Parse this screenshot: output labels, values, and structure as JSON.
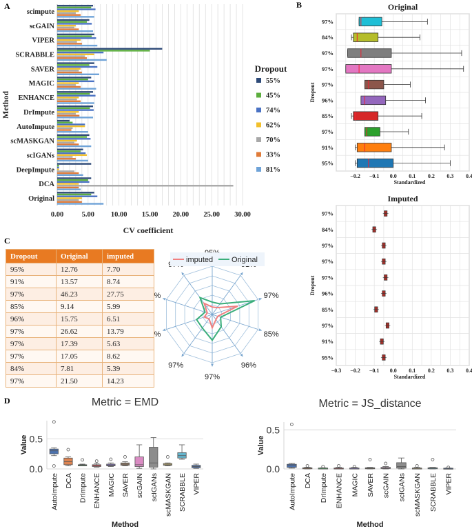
{
  "panel_labels": {
    "a": "A",
    "b": "B",
    "c": "C",
    "d": "D"
  },
  "chart_data": [
    {
      "id": "A",
      "type": "bar",
      "orientation": "horizontal",
      "xlabel": "CV coefficient",
      "ylabel": "Method",
      "xlim": [
        0,
        30
      ],
      "xticks": [
        "0.00",
        "5.00",
        "10.00",
        "15.00",
        "20.00",
        "25.00",
        "30.00"
      ],
      "legend_title": "Dropout",
      "categories": [
        "scimpute",
        "scGAIN",
        "VIPER",
        "SCRABBLE",
        "SAVER",
        "MAGIC",
        "ENHANCE",
        "DrImpute",
        "AutoImpute",
        "scMASKGAN",
        "scIGANs",
        "DeepImpute",
        "DCA",
        "Original"
      ],
      "series": [
        {
          "name": "55%",
          "color": "#2e4a78",
          "values": [
            5.8,
            5.2,
            6.0,
            17.0,
            6.0,
            5.5,
            5.8,
            5.8,
            2.0,
            5.2,
            4.2,
            5.5,
            5.5,
            6.0
          ]
        },
        {
          "name": "45%",
          "color": "#5cae3e",
          "values": [
            5.5,
            4.8,
            5.6,
            15.0,
            5.2,
            5.0,
            5.3,
            5.3,
            2.5,
            4.8,
            3.8,
            0.3,
            5.0,
            5.5
          ]
        },
        {
          "name": "74%",
          "color": "#4a72c4",
          "values": [
            6.2,
            5.6,
            6.3,
            7.5,
            6.5,
            6.0,
            6.2,
            5.9,
            4.5,
            5.4,
            4.6,
            0.3,
            5.2,
            6.5
          ]
        },
        {
          "name": "62%",
          "color": "#f2c02c",
          "values": [
            3.5,
            3.0,
            3.8,
            6.0,
            3.8,
            3.5,
            3.5,
            3.5,
            4.5,
            3.2,
            4.8,
            0.3,
            3.5,
            4.0
          ]
        },
        {
          "name": "70%",
          "color": "#a8a8a8",
          "values": [
            3.0,
            2.8,
            3.2,
            4.5,
            3.5,
            3.0,
            3.2,
            3.0,
            2.5,
            2.8,
            2.5,
            2.8,
            28.5,
            3.5
          ]
        },
        {
          "name": "33%",
          "color": "#e07b39",
          "values": [
            3.8,
            3.5,
            4.0,
            4.8,
            4.0,
            3.8,
            3.8,
            3.6,
            2.3,
            3.5,
            3.0,
            3.5,
            3.5,
            4.0
          ]
        },
        {
          "name": "81%",
          "color": "#6fa3d8",
          "values": [
            6.0,
            5.8,
            6.5,
            8.0,
            6.8,
            6.3,
            6.0,
            5.8,
            5.0,
            5.5,
            5.0,
            4.2,
            3.8,
            7.5
          ]
        }
      ]
    },
    {
      "id": "B-original",
      "type": "box",
      "title": "Original",
      "xlabel": "Standardized",
      "ylabel": "Dropout",
      "xlim": [
        -0.3,
        0.4
      ],
      "xticks": [
        "−0.2",
        "−0.1",
        "0.0",
        "0.1",
        "0.2",
        "0.3",
        "0.4"
      ],
      "categories": [
        "97%",
        "84%",
        "97%",
        "97%",
        "97%",
        "96%",
        "85%",
        "97%",
        "91%",
        "95%"
      ],
      "boxes": [
        {
          "color": "#1fbfd6",
          "q1": -0.18,
          "median": -0.17,
          "q3": -0.06,
          "whislo": -0.18,
          "whishi": 0.18
        },
        {
          "color": "#b5bd2a",
          "q1": -0.21,
          "median": -0.19,
          "q3": -0.08,
          "whislo": -0.22,
          "whishi": 0.14
        },
        {
          "color": "#7f7f7f",
          "q1": -0.24,
          "median": -0.17,
          "q3": -0.01,
          "whislo": -0.24,
          "whishi": 0.36
        },
        {
          "color": "#e377c2",
          "q1": -0.25,
          "median": -0.18,
          "q3": -0.01,
          "whislo": -0.25,
          "whishi": 0.37
        },
        {
          "color": "#8c564b",
          "q1": -0.15,
          "median": -0.13,
          "q3": -0.05,
          "whislo": -0.15,
          "whishi": 0.09
        },
        {
          "color": "#9467bd",
          "q1": -0.17,
          "median": -0.15,
          "q3": -0.04,
          "whislo": -0.17,
          "whishi": 0.17
        },
        {
          "color": "#d62728",
          "q1": -0.21,
          "median": -0.2,
          "q3": -0.08,
          "whislo": -0.22,
          "whishi": 0.15
        },
        {
          "color": "#2ca02c",
          "q1": -0.15,
          "median": -0.14,
          "q3": -0.07,
          "whislo": -0.15,
          "whishi": 0.08
        },
        {
          "color": "#ff7f0e",
          "q1": -0.19,
          "median": -0.15,
          "q3": -0.01,
          "whislo": -0.2,
          "whishi": 0.27
        },
        {
          "color": "#1f77b4",
          "q1": -0.19,
          "median": -0.13,
          "q3": 0.0,
          "whislo": -0.2,
          "whishi": 0.3
        }
      ]
    },
    {
      "id": "B-imputed",
      "type": "box",
      "title": "Imputed",
      "xlabel": "Standardized",
      "ylabel": "Dropout",
      "xlim": [
        -0.3,
        0.4
      ],
      "xticks": [
        "−0.3",
        "−0.2",
        "−0.1",
        "0.0",
        "0.1",
        "0.2",
        "0.3",
        "0.4"
      ],
      "categories": [
        "97%",
        "84%",
        "97%",
        "97%",
        "97%",
        "96%",
        "85%",
        "97%",
        "91%",
        "95%"
      ],
      "centers": [
        -0.04,
        -0.1,
        -0.05,
        -0.05,
        -0.04,
        -0.05,
        -0.09,
        -0.03,
        -0.06,
        -0.05
      ]
    },
    {
      "id": "C-table",
      "type": "table",
      "columns": [
        "Dropout",
        "Original",
        "imputed"
      ],
      "rows": [
        [
          "95%",
          "12.76",
          "7.70"
        ],
        [
          "91%",
          "13.57",
          "8.74"
        ],
        [
          "97%",
          "46.23",
          "27.75"
        ],
        [
          "85%",
          "9.14",
          "5.99"
        ],
        [
          "96%",
          "15.75",
          "6.51"
        ],
        [
          "97%",
          "26.62",
          "13.79"
        ],
        [
          "97%",
          "17.39",
          "5.63"
        ],
        [
          "97%",
          "17.05",
          "8.62"
        ],
        [
          "84%",
          "7.81",
          "5.39"
        ],
        [
          "97%",
          "21.50",
          "14.23"
        ]
      ]
    },
    {
      "id": "C-radar",
      "type": "radar",
      "axes": [
        "95%",
        "91%",
        "97%",
        "85%",
        "96%",
        "97%",
        "97%",
        "97%",
        "84%",
        "97%"
      ],
      "series": [
        {
          "name": "imputed",
          "color": "#f08080",
          "values": [
            7.7,
            8.74,
            27.75,
            5.99,
            6.51,
            13.79,
            5.63,
            8.62,
            5.39,
            14.23
          ]
        },
        {
          "name": "Original",
          "color": "#3aae7a",
          "values": [
            12.76,
            13.57,
            46.23,
            9.14,
            15.75,
            26.62,
            17.39,
            17.05,
            7.81,
            21.5
          ]
        }
      ],
      "rmax": 50
    },
    {
      "id": "D-EMD",
      "type": "box",
      "title": "Metric = EMD",
      "xlabel": "Method",
      "ylabel": "Value",
      "ylim": [
        0,
        0.8
      ],
      "yticks": [
        "0.0",
        "0.5"
      ],
      "categories": [
        "AutoImpute",
        "DCA",
        "DrImpute",
        "ENHANCE",
        "MAGIC",
        "SAVER",
        "scGAIN",
        "scIGANs",
        "scMASKGAN",
        "SCRABBLE",
        "VIPER"
      ],
      "boxes": [
        {
          "color": "#4c72b0",
          "q1": 0.25,
          "median": 0.3,
          "q3": 0.33,
          "whislo": 0.22,
          "whishi": 0.35,
          "fliers": [
            0.78,
            0.05
          ]
        },
        {
          "color": "#dd8452",
          "q1": 0.07,
          "median": 0.12,
          "q3": 0.18,
          "whislo": 0.05,
          "whishi": 0.2,
          "fliers": [
            0.32
          ]
        },
        {
          "color": "#55a868",
          "q1": 0.05,
          "median": 0.06,
          "q3": 0.07,
          "whislo": 0.05,
          "whishi": 0.08,
          "fliers": [
            0.15
          ]
        },
        {
          "color": "#c44e52",
          "q1": 0.04,
          "median": 0.06,
          "q3": 0.07,
          "whislo": 0.03,
          "whishi": 0.09,
          "fliers": [
            0.13
          ]
        },
        {
          "color": "#8172b3",
          "q1": 0.05,
          "median": 0.06,
          "q3": 0.08,
          "whislo": 0.04,
          "whishi": 0.1,
          "fliers": [
            0.16
          ]
        },
        {
          "color": "#937860",
          "q1": 0.06,
          "median": 0.08,
          "q3": 0.1,
          "whislo": 0.05,
          "whishi": 0.12,
          "fliers": [
            0.2
          ]
        },
        {
          "color": "#da8bc3",
          "q1": 0.04,
          "median": 0.07,
          "q3": 0.2,
          "whislo": 0.01,
          "whishi": 0.4,
          "fliers": []
        },
        {
          "color": "#8c8c8c",
          "q1": 0.03,
          "median": 0.1,
          "q3": 0.36,
          "whislo": 0.0,
          "whishi": 0.52,
          "fliers": []
        },
        {
          "color": "#ccb974",
          "q1": 0.06,
          "median": 0.07,
          "q3": 0.09,
          "whislo": 0.05,
          "whishi": 0.1,
          "fliers": [
            0.2
          ]
        },
        {
          "color": "#64b5cd",
          "q1": 0.18,
          "median": 0.22,
          "q3": 0.27,
          "whislo": 0.16,
          "whishi": 0.4,
          "fliers": []
        },
        {
          "color": "#4c72b0",
          "q1": 0.02,
          "median": 0.04,
          "q3": 0.06,
          "whislo": 0.01,
          "whishi": 0.08,
          "fliers": []
        }
      ]
    },
    {
      "id": "D-JS",
      "type": "box",
      "title": "Metric = JS_distance",
      "xlabel": "Method",
      "ylabel": "Value",
      "ylim": [
        0,
        0.6
      ],
      "yticks": [
        "0.0",
        "0.5"
      ],
      "categories": [
        "AutoImpute",
        "DCA",
        "DrImpute",
        "ENHANCE",
        "MAGIC",
        "SAVER",
        "scGAIN",
        "scIGANs",
        "scMASKGAN",
        "SCRABBLE",
        "VIPER"
      ],
      "boxes": [
        {
          "color": "#4c72b0",
          "q1": 0.02,
          "median": 0.04,
          "q3": 0.06,
          "whislo": 0.01,
          "whishi": 0.07,
          "fliers": [
            0.57
          ]
        },
        {
          "color": "#dd8452",
          "q1": 0.005,
          "median": 0.01,
          "q3": 0.015,
          "whislo": 0.0,
          "whishi": 0.02,
          "fliers": [
            0.04
          ]
        },
        {
          "color": "#55a868",
          "q1": 0.005,
          "median": 0.01,
          "q3": 0.012,
          "whislo": 0.0,
          "whishi": 0.015,
          "fliers": [
            0.03
          ]
        },
        {
          "color": "#c44e52",
          "q1": 0.005,
          "median": 0.008,
          "q3": 0.012,
          "whislo": 0.0,
          "whishi": 0.02,
          "fliers": [
            0.04
          ]
        },
        {
          "color": "#8172b3",
          "q1": 0.005,
          "median": 0.01,
          "q3": 0.012,
          "whislo": 0.0,
          "whishi": 0.02,
          "fliers": [
            0.03
          ]
        },
        {
          "color": "#937860",
          "q1": 0.005,
          "median": 0.01,
          "q3": 0.015,
          "whislo": 0.0,
          "whishi": 0.02,
          "fliers": [
            0.12
          ]
        },
        {
          "color": "#da8bc3",
          "q1": 0.005,
          "median": 0.01,
          "q3": 0.02,
          "whislo": 0.0,
          "whishi": 0.03,
          "fliers": [
            0.07
          ]
        },
        {
          "color": "#8c8c8c",
          "q1": 0.01,
          "median": 0.03,
          "q3": 0.08,
          "whislo": 0.0,
          "whishi": 0.14,
          "fliers": []
        },
        {
          "color": "#ccb974",
          "q1": 0.005,
          "median": 0.008,
          "q3": 0.012,
          "whislo": 0.0,
          "whishi": 0.02,
          "fliers": [
            0.04
          ]
        },
        {
          "color": "#64b5cd",
          "q1": 0.005,
          "median": 0.01,
          "q3": 0.015,
          "whislo": 0.0,
          "whishi": 0.02,
          "fliers": [
            0.12
          ]
        },
        {
          "color": "#4c72b0",
          "q1": 0.003,
          "median": 0.006,
          "q3": 0.01,
          "whislo": 0.0,
          "whishi": 0.012,
          "fliers": [
            0.02
          ]
        }
      ]
    }
  ]
}
